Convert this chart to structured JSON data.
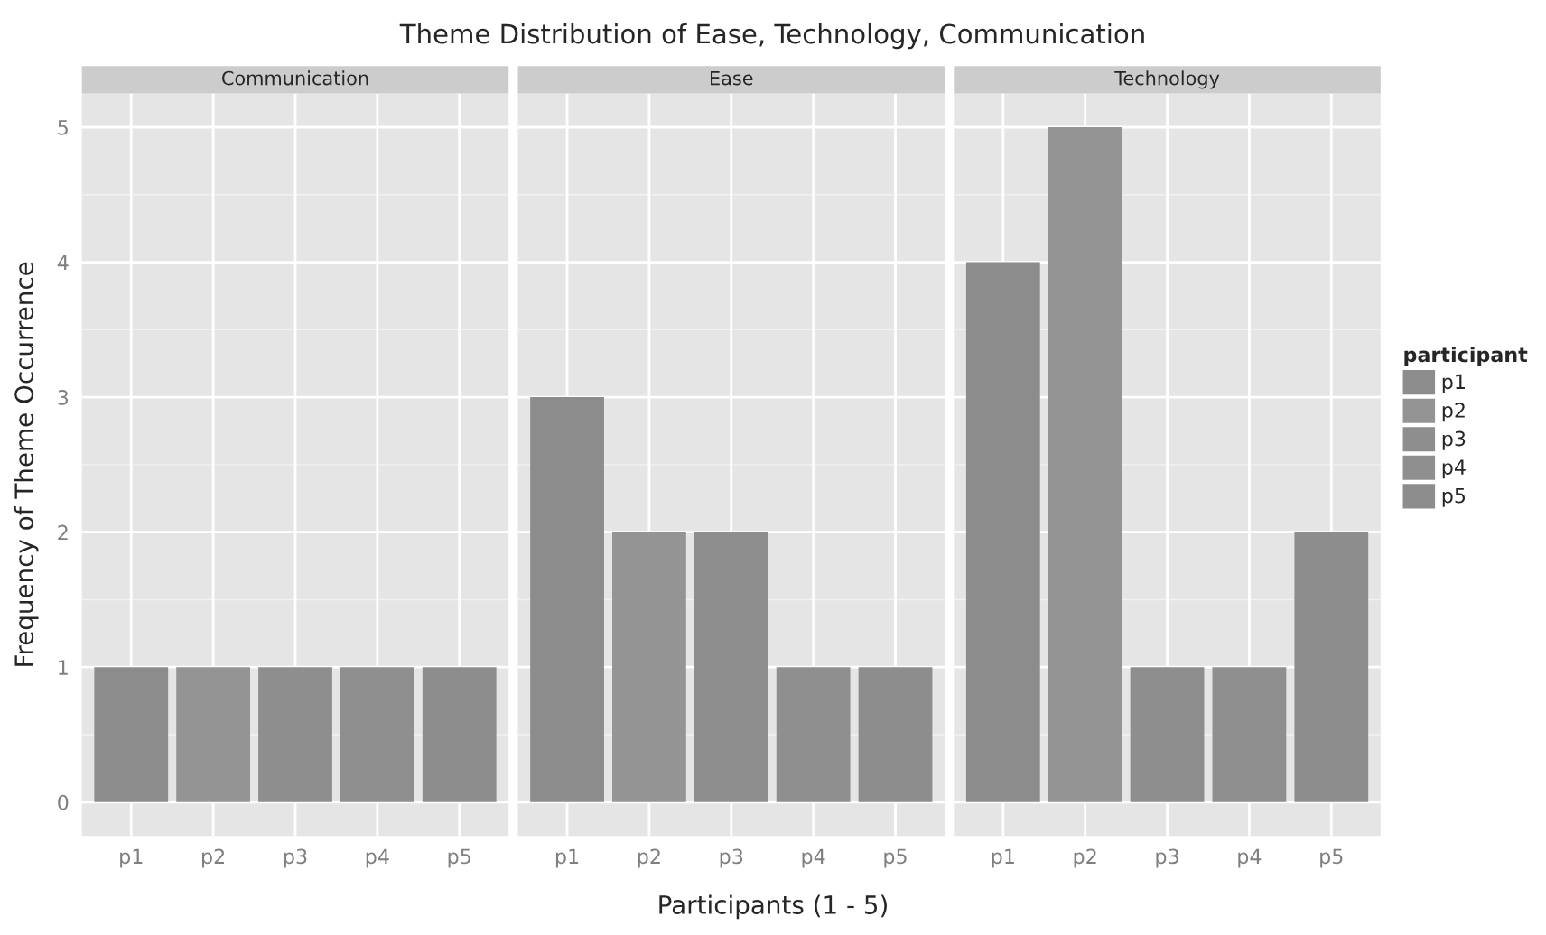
{
  "chart_data": [
    {
      "type": "bar",
      "title": "Theme Distribution of Ease, Technology, Communication",
      "subtitle": "Communication",
      "ylabel": "Frequency of Theme Occurrence",
      "categories": [
        "p1",
        "p2",
        "p3",
        "p4",
        "p5"
      ],
      "values": [
        1,
        1,
        1,
        1,
        1
      ],
      "colors": [
        "#8c8c8c",
        "#949494",
        "#8e8e8e",
        "#8f8f8f",
        "#8d8d8d"
      ],
      "ylim": [
        -0.25,
        5.25
      ],
      "yticks": [
        0,
        1,
        2,
        3,
        4,
        5
      ],
      "grid": true
    },
    {
      "type": "bar",
      "subtitle": "Ease",
      "xlabel": "Participants (1 - 5)",
      "categories": [
        "p1",
        "p2",
        "p3",
        "p4",
        "p5"
      ],
      "values": [
        3,
        2,
        2,
        1,
        1
      ],
      "colors": [
        "#8c8c8c",
        "#949494",
        "#8e8e8e",
        "#8f8f8f",
        "#8d8d8d"
      ],
      "ylim": [
        -0.25,
        5.25
      ],
      "yticks": [
        0,
        1,
        2,
        3,
        4,
        5
      ],
      "grid": true,
      "tick_labels": "x"
    },
    {
      "type": "bar",
      "subtitle": "Technology",
      "categories": [
        "p1",
        "p2",
        "p3",
        "p4",
        "p5"
      ],
      "series": [
        {
          "name": "p1",
          "color": "#8c8c8c",
          "values": [
            4,
            null,
            null,
            null,
            null
          ]
        },
        {
          "name": "p2",
          "color": "#949494",
          "values": [
            null,
            5,
            null,
            null,
            null
          ]
        },
        {
          "name": "p3",
          "color": "#8e8e8e",
          "values": [
            null,
            null,
            1,
            null,
            null
          ]
        },
        {
          "name": "p4",
          "color": "#8f8f8f",
          "values": [
            null,
            null,
            null,
            1,
            null
          ]
        },
        {
          "name": "p5",
          "color": "#8d8d8d",
          "values": [
            null,
            null,
            null,
            null,
            2
          ]
        }
      ],
      "ylim": [
        -0.25,
        5.25
      ],
      "yticks": [
        0,
        1,
        2,
        3,
        4,
        5
      ],
      "grid": true,
      "tick_labels": "x",
      "legend": "right",
      "legend_title": "participant"
    }
  ]
}
